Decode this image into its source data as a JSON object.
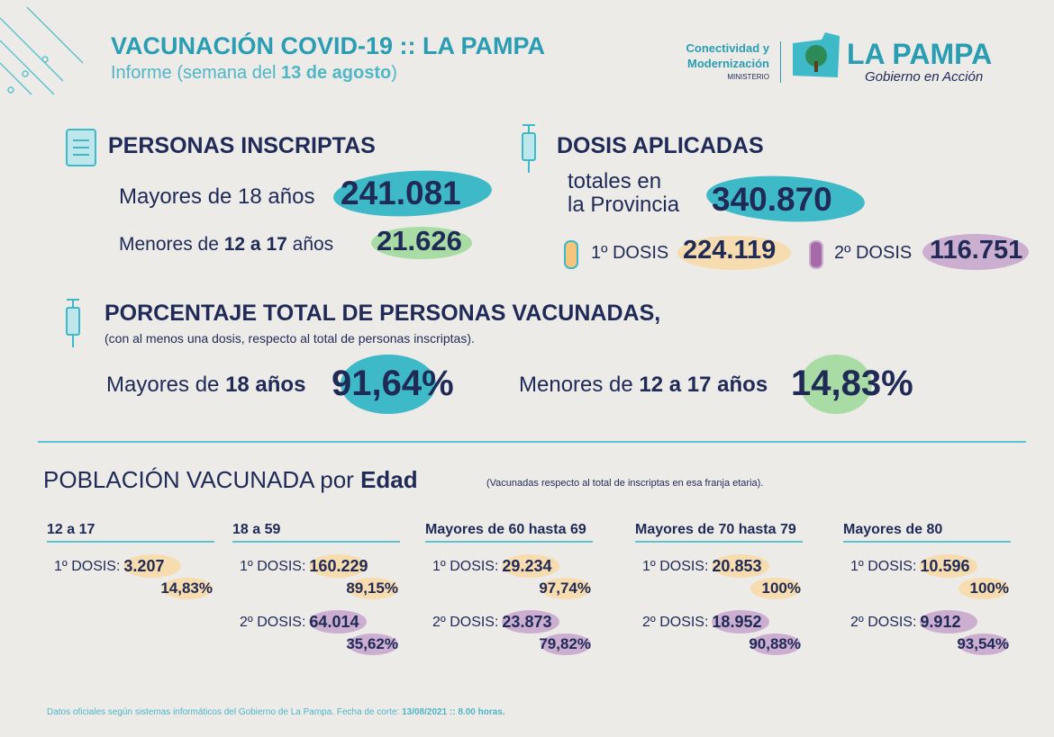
{
  "header": {
    "title": "VACUNACIÓN COVID-19 :: LA PAMPA",
    "subtitle_parts": [
      "Informe (semana del ",
      "13 de agosto",
      ")"
    ],
    "ministry": [
      "Conectividad y",
      "Modernización",
      "MINISTERIO"
    ],
    "brand": "LA PAMPA",
    "brand_tagline": "Gobierno en Acción"
  },
  "inscriptas": {
    "title": "PERSONAS INSCRIPTAS",
    "adults_label": "Mayores de 18 años",
    "adults_value": "241.081",
    "minors_label_parts": [
      "Menores de ",
      "12 a 17",
      " años"
    ],
    "minors_value": "21.626"
  },
  "dosis": {
    "title": "DOSIS APLICADAS",
    "total_label": [
      "totales en",
      "la Provincia"
    ],
    "total_value": "340.870",
    "first_label": "1º DOSIS",
    "first_value": "224.119",
    "second_label": "2º DOSIS",
    "second_value": "116.751"
  },
  "porcentaje": {
    "title": "PORCENTAJE TOTAL DE PERSONAS VACUNADAS,",
    "note": "(con al menos una dosis, respecto al total de personas inscriptas).",
    "adults_label_parts": [
      "Mayores de ",
      "18 años"
    ],
    "adults_value": "91,64%",
    "minors_label_parts": [
      "Menores de ",
      "12 a 17 años"
    ],
    "minors_value": "14,83%"
  },
  "edad": {
    "title_parts": [
      "POBLACIÓN VACUNADA por ",
      "Edad"
    ],
    "note": "(Vacunadas respecto al total de inscriptas en esa franja etaria).",
    "groups": [
      {
        "name": "12 a 17",
        "rows": [
          {
            "label": "1º DOSIS:",
            "value": "3.207",
            "percent": "14,83%"
          }
        ]
      },
      {
        "name": "18 a 59",
        "rows": [
          {
            "label": "1º DOSIS:",
            "value": "160.229",
            "percent": "89,15%"
          },
          {
            "label": "2º DOSIS:",
            "value": "64.014",
            "percent": "35,62%"
          }
        ]
      },
      {
        "name": "Mayores de 60 hasta 69",
        "rows": [
          {
            "label": "1º DOSIS:",
            "value": "29.234",
            "percent": "97,74%"
          },
          {
            "label": "2º DOSIS:",
            "value": "23.873",
            "percent": "79,82%"
          }
        ]
      },
      {
        "name": "Mayores de 70 hasta 79",
        "rows": [
          {
            "label": "1º DOSIS:",
            "value": "20.853",
            "percent": "100%"
          },
          {
            "label": "2º DOSIS:",
            "value": "18.952",
            "percent": "90,88%"
          }
        ]
      },
      {
        "name": "Mayores de 80",
        "rows": [
          {
            "label": "1º DOSIS:",
            "value": "10.596",
            "percent": "100%"
          },
          {
            "label": "2º DOSIS:",
            "value": "9.912",
            "percent": "93,54%"
          }
        ]
      }
    ]
  },
  "footer": {
    "text_parts": [
      "Datos oficiales según sistemas informáticos del Gobierno de La Pampa. Fecha de corte: ",
      "13/08/2021 :: 8.00 horas."
    ]
  }
}
